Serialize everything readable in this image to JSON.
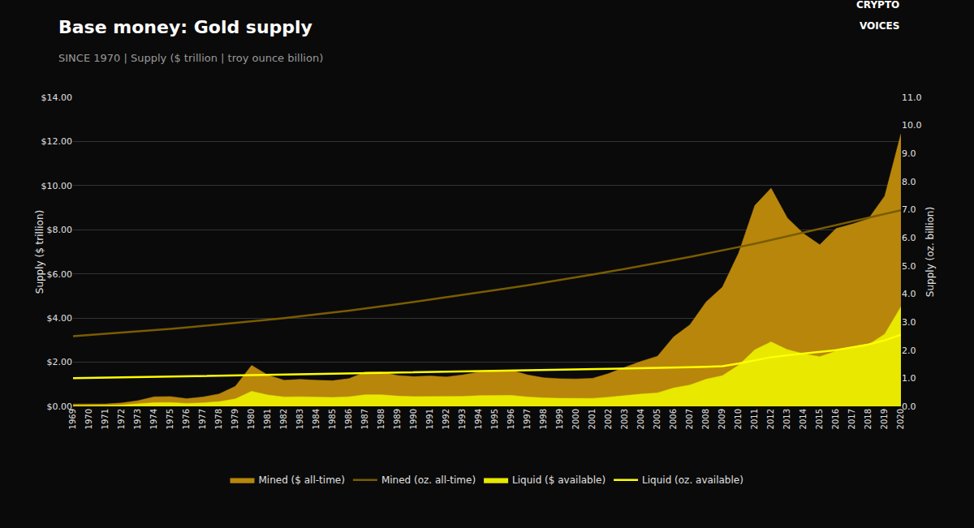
{
  "chart_data": {
    "type": "area",
    "title": "Base money: Gold supply",
    "subtitle": "SINCE 1970 | Supply ($ trillion | troy ounce billion)",
    "ylabel": "Supply ($ trillion)",
    "y2label": "Supply (oz. billion)",
    "x": [
      1969,
      1970,
      1971,
      1972,
      1973,
      1974,
      1975,
      1976,
      1977,
      1978,
      1979,
      1980,
      1981,
      1982,
      1983,
      1984,
      1985,
      1986,
      1987,
      1988,
      1989,
      1990,
      1991,
      1992,
      1993,
      1994,
      1995,
      1996,
      1997,
      1998,
      1999,
      2000,
      2001,
      2002,
      2003,
      2004,
      2005,
      2006,
      2007,
      2008,
      2009,
      2010,
      2011,
      2012,
      2013,
      2014,
      2015,
      2016,
      2017,
      2018,
      2019,
      2020
    ],
    "xlim": [
      1969,
      2020
    ],
    "xticks": [
      1969,
      1970,
      1971,
      1972,
      1973,
      1974,
      1975,
      1976,
      1977,
      1978,
      1979,
      1980,
      1981,
      1982,
      1983,
      1984,
      1985,
      1986,
      1987,
      1988,
      1989,
      1990,
      1991,
      1992,
      1993,
      1994,
      1995,
      1996,
      1997,
      1998,
      1999,
      2000,
      2001,
      2002,
      2003,
      2004,
      2005,
      2006,
      2007,
      2008,
      2009,
      2010,
      2011,
      2012,
      2013,
      2014,
      2015,
      2016,
      2017,
      2018,
      2019,
      2020
    ],
    "ylim": [
      0,
      14
    ],
    "yticks": [
      {
        "value": 0,
        "label": "$0.00"
      },
      {
        "value": 2,
        "label": "$2.00"
      },
      {
        "value": 4,
        "label": "$4.00"
      },
      {
        "value": 6,
        "label": "$6.00"
      },
      {
        "value": 8,
        "label": "$8.00"
      },
      {
        "value": 10,
        "label": "$10.00"
      },
      {
        "value": 12,
        "label": "$12.00"
      },
      {
        "value": 14,
        "label": "$14.00"
      }
    ],
    "y2lim": [
      0,
      11
    ],
    "y2ticks": [
      {
        "value": 0,
        "label": "0.0"
      },
      {
        "value": 1,
        "label": "1.0"
      },
      {
        "value": 2,
        "label": "2.0"
      },
      {
        "value": 3,
        "label": "3.0"
      },
      {
        "value": 4,
        "label": "4.0"
      },
      {
        "value": 5,
        "label": "5.0"
      },
      {
        "value": 6,
        "label": "6.0"
      },
      {
        "value": 7,
        "label": "7.0"
      },
      {
        "value": 8,
        "label": "8.0"
      },
      {
        "value": 9,
        "label": "9.0"
      },
      {
        "value": 10,
        "label": "10.0"
      },
      {
        "value": 11,
        "label": "11.0"
      }
    ],
    "grid": true,
    "legend": "bottom",
    "annotations": [
      {
        "text": "CRYPTO"
      },
      {
        "text": "VOICES"
      }
    ],
    "series": [
      {
        "name": "Mined ($ all-time)",
        "type": "area",
        "color": "#b8860b",
        "values": [
          0.1025,
          0.09144,
          0.10578,
          0.15196,
          0.25802,
          0.4336,
          0.44436,
          0.34844,
          0.42328,
          0.56356,
          0.90882,
          1.8573,
          1.4168,
          1.18064,
          1.2224,
          1.18047,
          1.16232,
          1.25488,
          1.55556,
          1.55572,
          1.39776,
          1.34664,
          1.3756,
          1.33472,
          1.4256,
          1.55136,
          1.58592,
          1.63736,
          1.42661,
          1.2936,
          1.25271,
          1.24389,
          1.27099,
          1.4849,
          1.77507,
          2.04091,
          2.2695,
          3.14684,
          3.6974,
          4.73496,
          5.40015,
          6.94575,
          9.10188,
          9.88048,
          8.53655,
          7.82388,
          7.3196,
          8.05644,
          8.25849,
          8.4956,
          9.52812,
          12.3546
        ]
      },
      {
        "name": "Mined (oz. all-time)",
        "type": "line",
        "axis": "y2",
        "color": "#7a5c00",
        "values": [
          2.5,
          2.54,
          2.58,
          2.62,
          2.66,
          2.71,
          2.76,
          2.81,
          2.86,
          2.92,
          2.97,
          3.02,
          3.08,
          3.14,
          3.2,
          3.27,
          3.34,
          3.41,
          3.48,
          3.56,
          3.64,
          3.72,
          3.8,
          3.88,
          3.96,
          4.04,
          4.13,
          4.22,
          4.31,
          4.4,
          4.49,
          4.59,
          4.69,
          4.79,
          4.89,
          4.99,
          5.1,
          5.21,
          5.32,
          5.43,
          5.55,
          5.67,
          5.79,
          5.92,
          6.05,
          6.18,
          6.31,
          6.44,
          6.57,
          6.7,
          6.84,
          6.98
        ]
      },
      {
        "name": "Liquid ($ available)",
        "type": "area",
        "color": "#e8e800",
        "values": [
          0.041,
          0.03636,
          0.04182,
          0.05974,
          0.10088,
          0.168,
          0.17066,
          0.13268,
          0.15984,
          0.21037,
          0.3366,
          0.68265,
          0.5152,
          0.42488,
          0.43548,
          0.41515,
          0.40368,
          0.43056,
          0.52746,
          0.5244,
          0.46464,
          0.44164,
          0.44526,
          0.42656,
          0.45,
          0.48384,
          0.48768,
          0.49664,
          0.42699,
          0.3822,
          0.36549,
          0.35772,
          0.36043,
          0.4154,
          0.49005,
          0.55624,
          0.60965,
          0.83352,
          0.96605,
          1.22952,
          1.39139,
          1.862,
          2.56236,
          2.92075,
          2.56802,
          2.38008,
          2.2504,
          2.502,
          2.6397,
          2.7896,
          3.27355,
          4.5135
        ]
      },
      {
        "name": "Liquid (oz. available)",
        "type": "line",
        "axis": "y2",
        "color": "#ffff00",
        "values": [
          1.0,
          1.01,
          1.02,
          1.03,
          1.04,
          1.05,
          1.06,
          1.07,
          1.08,
          1.09,
          1.1,
          1.11,
          1.12,
          1.13,
          1.14,
          1.15,
          1.16,
          1.17,
          1.18,
          1.2,
          1.21,
          1.22,
          1.23,
          1.24,
          1.25,
          1.26,
          1.27,
          1.28,
          1.29,
          1.3,
          1.31,
          1.32,
          1.33,
          1.34,
          1.35,
          1.36,
          1.37,
          1.38,
          1.39,
          1.41,
          1.43,
          1.52,
          1.63,
          1.75,
          1.82,
          1.88,
          1.94,
          2.0,
          2.1,
          2.2,
          2.35,
          2.55
        ]
      }
    ]
  }
}
